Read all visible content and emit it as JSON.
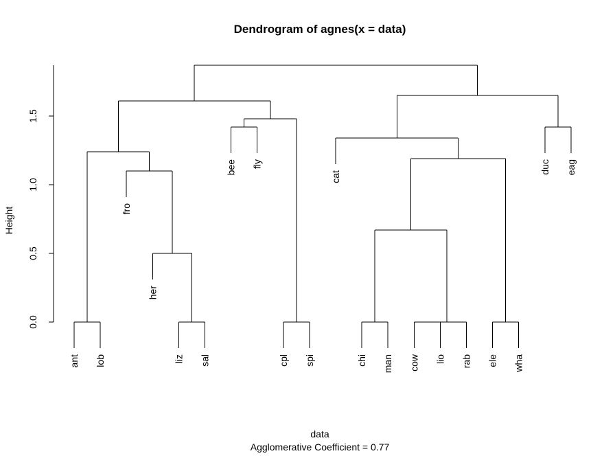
{
  "chart_data": {
    "type": "dendrogram",
    "title": "Dendrogram of  agnes(x = data)",
    "xlabel": "data",
    "subtitle": "Agglomerative Coefficient =  0.77",
    "ylabel": "Height",
    "ylim": [
      0,
      1.87
    ],
    "yticks": [
      {
        "value": 0.0,
        "label": "0.0"
      },
      {
        "value": 0.5,
        "label": "0.5"
      },
      {
        "value": 1.0,
        "label": "1.0"
      },
      {
        "value": 1.5,
        "label": "1.5"
      }
    ],
    "grid": false,
    "leaves": [
      {
        "label": "ant",
        "height": 0.0
      },
      {
        "label": "lob",
        "height": 0.0
      },
      {
        "label": "fro",
        "height": 1.1
      },
      {
        "label": "her",
        "height": 0.5
      },
      {
        "label": "liz",
        "height": 0.0
      },
      {
        "label": "sal",
        "height": 0.0
      },
      {
        "label": "bee",
        "height": 1.42
      },
      {
        "label": "fly",
        "height": 1.42
      },
      {
        "label": "cpl",
        "height": 0.0
      },
      {
        "label": "spi",
        "height": 0.0
      },
      {
        "label": "cat",
        "height": 1.34
      },
      {
        "label": "chi",
        "height": 0.0
      },
      {
        "label": "man",
        "height": 0.0
      },
      {
        "label": "cow",
        "height": 0.0
      },
      {
        "label": "lio",
        "height": 0.0
      },
      {
        "label": "rab",
        "height": 0.0
      },
      {
        "label": "ele",
        "height": 0.0
      },
      {
        "label": "wha",
        "height": 0.0
      },
      {
        "label": "duc",
        "height": 1.42
      },
      {
        "label": "eag",
        "height": 1.42
      }
    ],
    "merges": [
      {
        "id": "m1",
        "left": "ant",
        "right": "lob",
        "height": 0.0
      },
      {
        "id": "m2",
        "left": "liz",
        "right": "sal",
        "height": 0.0
      },
      {
        "id": "m3",
        "left": "her",
        "right": "m2",
        "height": 0.5
      },
      {
        "id": "m4",
        "left": "fro",
        "right": "m3",
        "height": 1.1
      },
      {
        "id": "m5",
        "left": "m1",
        "right": "m4",
        "height": 1.24
      },
      {
        "id": "m6",
        "left": "bee",
        "right": "fly",
        "height": 1.42
      },
      {
        "id": "m7",
        "left": "cpl",
        "right": "spi",
        "height": 0.0
      },
      {
        "id": "m8",
        "left": "m6",
        "right": "m7",
        "height": 1.48
      },
      {
        "id": "m9",
        "left": "m5",
        "right": "m8",
        "height": 1.61
      },
      {
        "id": "m10",
        "left": "chi",
        "right": "man",
        "height": 0.0
      },
      {
        "id": "m11",
        "left": "cow",
        "right": "lio",
        "height": 0.0
      },
      {
        "id": "m12",
        "left": "m11",
        "right": "rab",
        "height": 0.0
      },
      {
        "id": "m13",
        "left": "m10",
        "right": "m12",
        "height": 0.67
      },
      {
        "id": "m14",
        "left": "ele",
        "right": "wha",
        "height": 0.0
      },
      {
        "id": "m15",
        "left": "m13",
        "right": "m14",
        "height": 1.19
      },
      {
        "id": "m16",
        "left": "cat",
        "right": "m15",
        "height": 1.34
      },
      {
        "id": "m17",
        "left": "duc",
        "right": "eag",
        "height": 1.42
      },
      {
        "id": "m18",
        "left": "m16",
        "right": "m17",
        "height": 1.65
      },
      {
        "id": "m19",
        "left": "m9",
        "right": "m18",
        "height": 1.87
      }
    ],
    "root": "m19"
  }
}
